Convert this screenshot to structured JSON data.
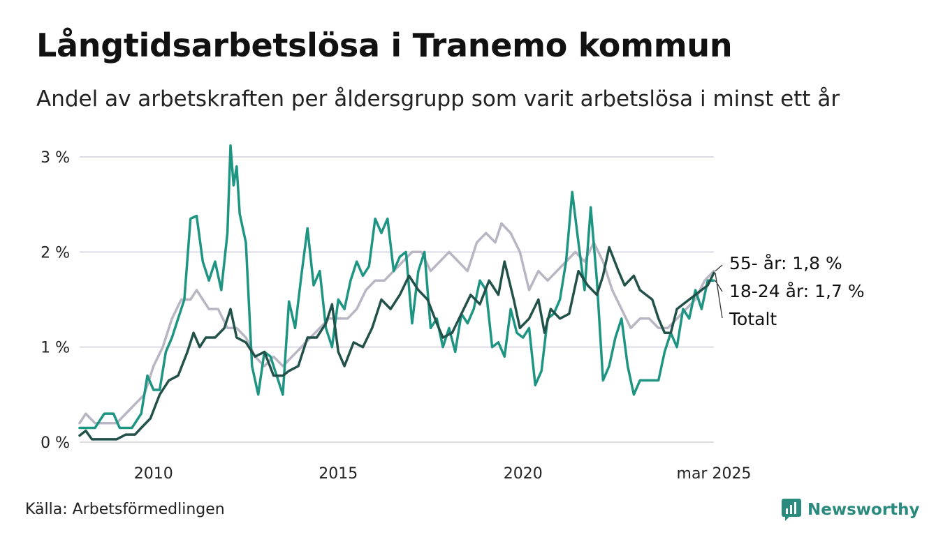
{
  "header": {
    "title": "Långtidsarbetslösa i Tranemo kommun",
    "subtitle": "Andel av arbetskraften per åldersgrupp som varit arbetslösa i minst ett år"
  },
  "footer": {
    "source": "Källa: Arbetsförmedlingen",
    "brand": "Newsworthy",
    "brand_icon": "newsworthy-logo-icon",
    "brand_color": "#2a8a7e"
  },
  "chart_data": {
    "type": "line",
    "title": "Långtidsarbetslösa i Tranemo kommun",
    "subtitle": "Andel av arbetskraften per åldersgrupp som varit arbetslösa i minst ett år",
    "x_range": [
      "2008-01",
      "2025-03"
    ],
    "x_ticks": [
      {
        "x": "2010-01",
        "label": "2010"
      },
      {
        "x": "2015-01",
        "label": "2015"
      },
      {
        "x": "2020-01",
        "label": "2020"
      },
      {
        "x": "2025-03",
        "label": "mar 2025"
      }
    ],
    "ylim": [
      0,
      3
    ],
    "y_ticks": [
      {
        "value": 0,
        "label": "0 %"
      },
      {
        "value": 1,
        "label": "1 %"
      },
      {
        "value": 2,
        "label": "2 %"
      },
      {
        "value": 3,
        "label": "3 %"
      }
    ],
    "grid": true,
    "series": [
      {
        "name": "55- år",
        "end_label": "55- år: 1,8 %",
        "color": "#b9b6c4",
        "points": [
          [
            "2008-01",
            0.2
          ],
          [
            "2008-03",
            0.3
          ],
          [
            "2008-06",
            0.2
          ],
          [
            "2008-10",
            0.2
          ],
          [
            "2009-01",
            0.2
          ],
          [
            "2009-04",
            0.3
          ],
          [
            "2009-07",
            0.4
          ],
          [
            "2009-10",
            0.5
          ],
          [
            "2010-01",
            0.8
          ],
          [
            "2010-04",
            1.0
          ],
          [
            "2010-07",
            1.3
          ],
          [
            "2010-10",
            1.5
          ],
          [
            "2011-01",
            1.5
          ],
          [
            "2011-03",
            1.6
          ],
          [
            "2011-05",
            1.5
          ],
          [
            "2011-07",
            1.4
          ],
          [
            "2011-10",
            1.4
          ],
          [
            "2012-01",
            1.2
          ],
          [
            "2012-04",
            1.2
          ],
          [
            "2012-07",
            1.1
          ],
          [
            "2012-10",
            0.9
          ],
          [
            "2013-01",
            0.8
          ],
          [
            "2013-04",
            0.9
          ],
          [
            "2013-07",
            0.8
          ],
          [
            "2013-10",
            0.9
          ],
          [
            "2014-01",
            1.0
          ],
          [
            "2014-04",
            1.1
          ],
          [
            "2014-07",
            1.2
          ],
          [
            "2014-10",
            1.3
          ],
          [
            "2015-01",
            1.3
          ],
          [
            "2015-04",
            1.3
          ],
          [
            "2015-07",
            1.4
          ],
          [
            "2015-10",
            1.6
          ],
          [
            "2016-01",
            1.7
          ],
          [
            "2016-04",
            1.7
          ],
          [
            "2016-07",
            1.8
          ],
          [
            "2016-10",
            1.9
          ],
          [
            "2017-01",
            2.0
          ],
          [
            "2017-04",
            2.0
          ],
          [
            "2017-07",
            1.8
          ],
          [
            "2017-10",
            1.9
          ],
          [
            "2018-01",
            2.0
          ],
          [
            "2018-04",
            1.9
          ],
          [
            "2018-07",
            1.8
          ],
          [
            "2018-10",
            2.1
          ],
          [
            "2019-01",
            2.2
          ],
          [
            "2019-04",
            2.1
          ],
          [
            "2019-06",
            2.3
          ],
          [
            "2019-09",
            2.2
          ],
          [
            "2019-12",
            2.0
          ],
          [
            "2020-03",
            1.6
          ],
          [
            "2020-06",
            1.8
          ],
          [
            "2020-09",
            1.7
          ],
          [
            "2020-12",
            1.8
          ],
          [
            "2021-03",
            1.9
          ],
          [
            "2021-06",
            2.0
          ],
          [
            "2021-09",
            1.9
          ],
          [
            "2021-12",
            2.1
          ],
          [
            "2022-03",
            1.9
          ],
          [
            "2022-06",
            1.6
          ],
          [
            "2022-09",
            1.4
          ],
          [
            "2022-12",
            1.2
          ],
          [
            "2023-03",
            1.3
          ],
          [
            "2023-06",
            1.3
          ],
          [
            "2023-09",
            1.2
          ],
          [
            "2023-12",
            1.2
          ],
          [
            "2024-03",
            1.3
          ],
          [
            "2024-06",
            1.4
          ],
          [
            "2024-09",
            1.5
          ],
          [
            "2024-12",
            1.7
          ],
          [
            "2025-03",
            1.8
          ]
        ]
      },
      {
        "name": "18-24 år",
        "end_label": "18-24 år: 1,7 %",
        "color": "#1e9483",
        "points": [
          [
            "2008-01",
            0.15
          ],
          [
            "2008-06",
            0.15
          ],
          [
            "2008-09",
            0.3
          ],
          [
            "2008-12",
            0.3
          ],
          [
            "2009-02",
            0.15
          ],
          [
            "2009-06",
            0.15
          ],
          [
            "2009-09",
            0.3
          ],
          [
            "2009-11",
            0.7
          ],
          [
            "2010-01",
            0.55
          ],
          [
            "2010-03",
            0.55
          ],
          [
            "2010-05",
            0.95
          ],
          [
            "2010-07",
            1.1
          ],
          [
            "2010-09",
            1.3
          ],
          [
            "2010-11",
            1.5
          ],
          [
            "2011-01",
            2.35
          ],
          [
            "2011-03",
            2.38
          ],
          [
            "2011-05",
            1.9
          ],
          [
            "2011-07",
            1.7
          ],
          [
            "2011-09",
            1.9
          ],
          [
            "2011-11",
            1.6
          ],
          [
            "2012-01",
            2.2
          ],
          [
            "2012-02",
            3.12
          ],
          [
            "2012-03",
            2.7
          ],
          [
            "2012-04",
            2.9
          ],
          [
            "2012-05",
            2.4
          ],
          [
            "2012-07",
            2.1
          ],
          [
            "2012-09",
            0.8
          ],
          [
            "2012-11",
            0.5
          ],
          [
            "2013-01",
            0.95
          ],
          [
            "2013-03",
            0.9
          ],
          [
            "2013-05",
            0.7
          ],
          [
            "2013-07",
            0.5
          ],
          [
            "2013-09",
            1.48
          ],
          [
            "2013-11",
            1.2
          ],
          [
            "2014-01",
            1.75
          ],
          [
            "2014-03",
            2.25
          ],
          [
            "2014-05",
            1.65
          ],
          [
            "2014-07",
            1.8
          ],
          [
            "2014-09",
            1.2
          ],
          [
            "2014-11",
            1.0
          ],
          [
            "2015-01",
            1.5
          ],
          [
            "2015-03",
            1.4
          ],
          [
            "2015-05",
            1.7
          ],
          [
            "2015-07",
            1.9
          ],
          [
            "2015-09",
            1.75
          ],
          [
            "2015-11",
            1.85
          ],
          [
            "2016-01",
            2.35
          ],
          [
            "2016-03",
            2.2
          ],
          [
            "2016-05",
            2.35
          ],
          [
            "2016-07",
            1.8
          ],
          [
            "2016-09",
            1.95
          ],
          [
            "2016-11",
            2.0
          ],
          [
            "2017-01",
            1.25
          ],
          [
            "2017-03",
            1.8
          ],
          [
            "2017-05",
            2.0
          ],
          [
            "2017-07",
            1.2
          ],
          [
            "2017-09",
            1.3
          ],
          [
            "2017-11",
            1.0
          ],
          [
            "2018-01",
            1.2
          ],
          [
            "2018-03",
            0.95
          ],
          [
            "2018-05",
            1.35
          ],
          [
            "2018-07",
            1.25
          ],
          [
            "2018-09",
            1.4
          ],
          [
            "2018-11",
            1.7
          ],
          [
            "2019-01",
            1.6
          ],
          [
            "2019-03",
            1.0
          ],
          [
            "2019-05",
            1.05
          ],
          [
            "2019-07",
            0.9
          ],
          [
            "2019-09",
            1.4
          ],
          [
            "2019-11",
            1.15
          ],
          [
            "2020-01",
            1.1
          ],
          [
            "2020-03",
            1.2
          ],
          [
            "2020-05",
            0.6
          ],
          [
            "2020-07",
            0.75
          ],
          [
            "2020-09",
            1.3
          ],
          [
            "2020-11",
            1.35
          ],
          [
            "2021-01",
            1.5
          ],
          [
            "2021-03",
            1.9
          ],
          [
            "2021-05",
            2.63
          ],
          [
            "2021-07",
            2.1
          ],
          [
            "2021-09",
            1.6
          ],
          [
            "2021-11",
            2.47
          ],
          [
            "2022-01",
            1.7
          ],
          [
            "2022-03",
            0.65
          ],
          [
            "2022-05",
            0.8
          ],
          [
            "2022-07",
            1.1
          ],
          [
            "2022-09",
            1.3
          ],
          [
            "2022-11",
            0.8
          ],
          [
            "2023-01",
            0.5
          ],
          [
            "2023-03",
            0.65
          ],
          [
            "2023-06",
            0.65
          ],
          [
            "2023-09",
            0.65
          ],
          [
            "2023-11",
            0.95
          ],
          [
            "2024-01",
            1.15
          ],
          [
            "2024-03",
            1.0
          ],
          [
            "2024-05",
            1.4
          ],
          [
            "2024-07",
            1.3
          ],
          [
            "2024-09",
            1.6
          ],
          [
            "2024-11",
            1.4
          ],
          [
            "2025-01",
            1.7
          ],
          [
            "2025-03",
            1.7
          ]
        ]
      },
      {
        "name": "Totalt",
        "end_label": "Totalt",
        "color": "#22514a",
        "points": [
          [
            "2008-01",
            0.07
          ],
          [
            "2008-03",
            0.12
          ],
          [
            "2008-05",
            0.03
          ],
          [
            "2008-09",
            0.03
          ],
          [
            "2009-01",
            0.03
          ],
          [
            "2009-04",
            0.08
          ],
          [
            "2009-07",
            0.08
          ],
          [
            "2009-09",
            0.15
          ],
          [
            "2009-12",
            0.25
          ],
          [
            "2010-03",
            0.5
          ],
          [
            "2010-06",
            0.65
          ],
          [
            "2010-09",
            0.7
          ],
          [
            "2010-12",
            0.95
          ],
          [
            "2011-02",
            1.15
          ],
          [
            "2011-04",
            1.0
          ],
          [
            "2011-06",
            1.1
          ],
          [
            "2011-09",
            1.1
          ],
          [
            "2011-12",
            1.2
          ],
          [
            "2012-02",
            1.4
          ],
          [
            "2012-04",
            1.1
          ],
          [
            "2012-07",
            1.05
          ],
          [
            "2012-10",
            0.9
          ],
          [
            "2013-01",
            0.95
          ],
          [
            "2013-04",
            0.7
          ],
          [
            "2013-07",
            0.7
          ],
          [
            "2013-09",
            0.75
          ],
          [
            "2013-12",
            0.8
          ],
          [
            "2014-03",
            1.1
          ],
          [
            "2014-06",
            1.1
          ],
          [
            "2014-09",
            1.25
          ],
          [
            "2014-11",
            1.45
          ],
          [
            "2015-01",
            0.95
          ],
          [
            "2015-03",
            0.8
          ],
          [
            "2015-06",
            1.05
          ],
          [
            "2015-09",
            1.0
          ],
          [
            "2015-12",
            1.2
          ],
          [
            "2016-03",
            1.5
          ],
          [
            "2016-06",
            1.4
          ],
          [
            "2016-09",
            1.55
          ],
          [
            "2016-12",
            1.75
          ],
          [
            "2017-03",
            1.6
          ],
          [
            "2017-06",
            1.5
          ],
          [
            "2017-09",
            1.25
          ],
          [
            "2017-11",
            1.1
          ],
          [
            "2018-02",
            1.15
          ],
          [
            "2018-05",
            1.35
          ],
          [
            "2018-08",
            1.55
          ],
          [
            "2018-11",
            1.45
          ],
          [
            "2019-02",
            1.7
          ],
          [
            "2019-05",
            1.55
          ],
          [
            "2019-07",
            1.9
          ],
          [
            "2019-10",
            1.5
          ],
          [
            "2019-12",
            1.2
          ],
          [
            "2020-03",
            1.3
          ],
          [
            "2020-06",
            1.5
          ],
          [
            "2020-08",
            1.15
          ],
          [
            "2020-10",
            1.4
          ],
          [
            "2021-01",
            1.3
          ],
          [
            "2021-04",
            1.35
          ],
          [
            "2021-07",
            1.8
          ],
          [
            "2021-10",
            1.65
          ],
          [
            "2022-01",
            1.55
          ],
          [
            "2022-03",
            1.75
          ],
          [
            "2022-05",
            2.05
          ],
          [
            "2022-08",
            1.8
          ],
          [
            "2022-10",
            1.65
          ],
          [
            "2023-01",
            1.75
          ],
          [
            "2023-03",
            1.6
          ],
          [
            "2023-05",
            1.55
          ],
          [
            "2023-07",
            1.5
          ],
          [
            "2023-09",
            1.3
          ],
          [
            "2023-11",
            1.15
          ],
          [
            "2024-01",
            1.15
          ],
          [
            "2024-03",
            1.4
          ],
          [
            "2024-05",
            1.45
          ],
          [
            "2024-07",
            1.5
          ],
          [
            "2024-09",
            1.55
          ],
          [
            "2024-11",
            1.6
          ],
          [
            "2025-01",
            1.65
          ],
          [
            "2025-03",
            1.78
          ]
        ]
      }
    ]
  }
}
